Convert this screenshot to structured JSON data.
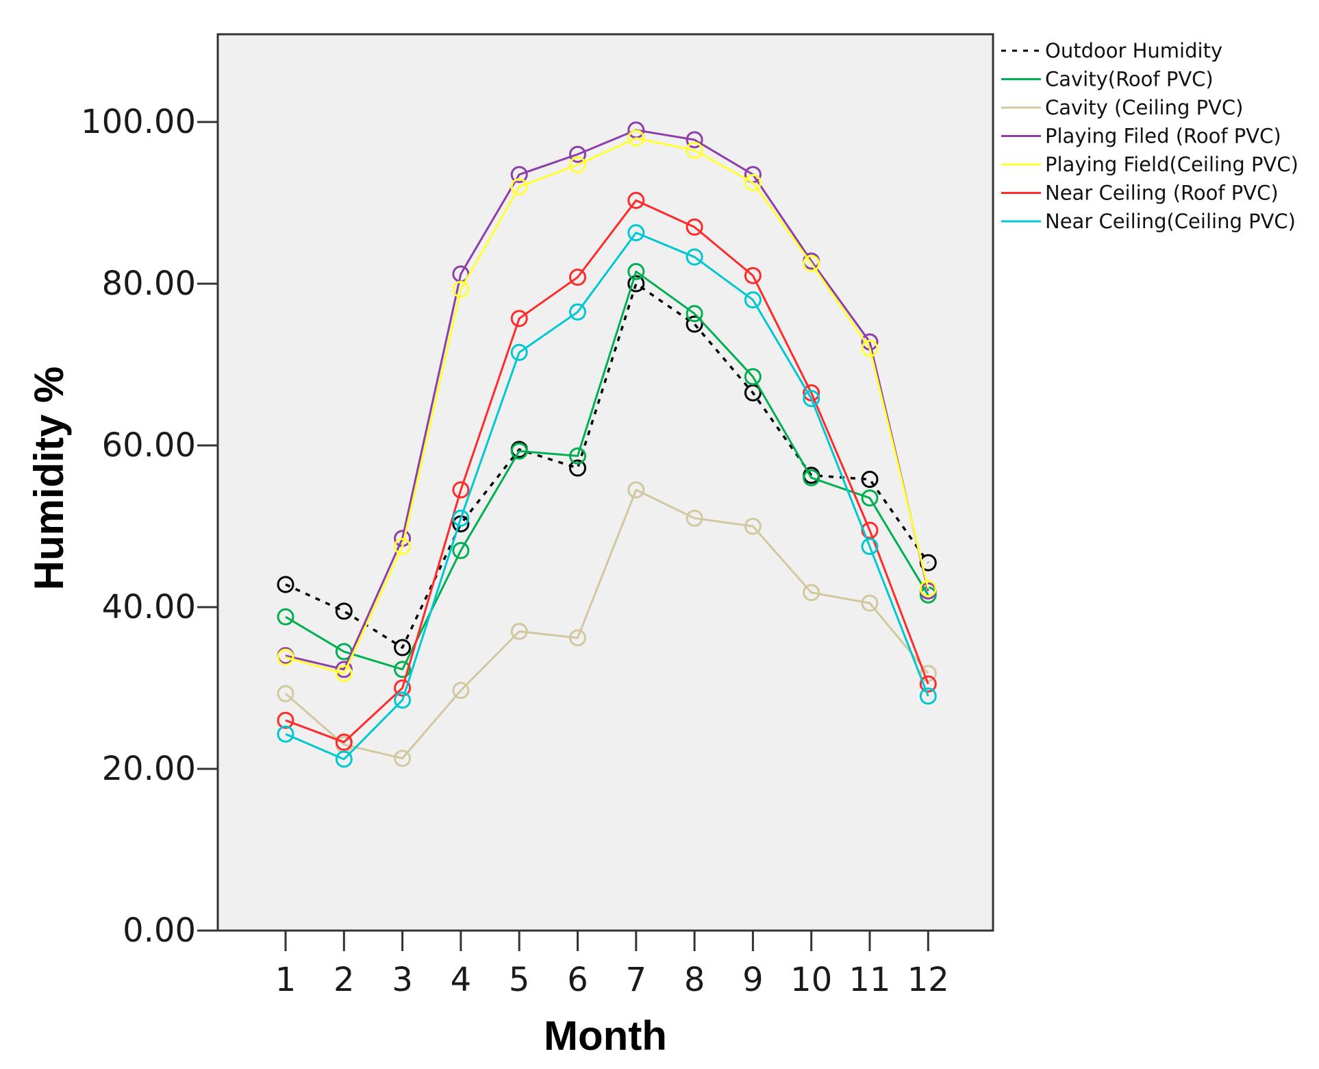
{
  "chart_data": {
    "type": "line",
    "xlabel": "Month",
    "ylabel": "Humidity %",
    "ylim": [
      0,
      110
    ],
    "yticks": [
      0,
      20,
      40,
      60,
      80,
      100
    ],
    "ytick_labels": [
      "0.00",
      "20.00",
      "40.00",
      "60.00",
      "80.00",
      "100.00"
    ],
    "x": [
      1,
      2,
      3,
      4,
      5,
      6,
      7,
      8,
      9,
      10,
      11,
      12
    ],
    "xtick_labels": [
      "1",
      "2",
      "3",
      "4",
      "5",
      "6",
      "7",
      "8",
      "9",
      "10",
      "11",
      "12"
    ],
    "legend_position": "top-right, outside plot",
    "plot_background": "#f0f0f0",
    "series": [
      {
        "name": "Outdoor Humidity",
        "color": "#000000",
        "dashed": true,
        "values": [
          42.8,
          39.5,
          35.0,
          50.3,
          59.5,
          57.2,
          80.0,
          75.0,
          66.5,
          56.3,
          55.8,
          45.5
        ]
      },
      {
        "name": "Cavity(Roof PVC)",
        "color": "#00b050",
        "dashed": false,
        "values": [
          38.8,
          34.5,
          32.3,
          47.0,
          59.3,
          58.7,
          81.5,
          76.3,
          68.5,
          56.0,
          53.5,
          41.5
        ]
      },
      {
        "name": "Cavity (Ceiling PVC)",
        "color": "#d2c8a0",
        "dashed": false,
        "values": [
          29.3,
          23.0,
          21.3,
          29.7,
          37.0,
          36.2,
          54.5,
          51.0,
          50.0,
          41.8,
          40.5,
          31.8
        ]
      },
      {
        "name": "Playing Filed (Roof PVC)",
        "color": "#8e3ea8",
        "dashed": false,
        "values": [
          34.0,
          32.3,
          48.5,
          81.2,
          93.5,
          96.0,
          99.0,
          97.8,
          93.5,
          82.8,
          72.8,
          42.0
        ]
      },
      {
        "name": "Playing Field(Ceiling PVC)",
        "color": "#ffff33",
        "dashed": false,
        "values": [
          33.8,
          31.8,
          47.5,
          79.3,
          92.0,
          94.7,
          98.0,
          96.5,
          92.5,
          82.5,
          72.0,
          42.3
        ]
      },
      {
        "name": "Near Ceiling (Roof PVC)",
        "color": "#ff2a2a",
        "dashed": false,
        "values": [
          26.0,
          23.3,
          30.0,
          54.5,
          75.7,
          80.8,
          90.3,
          87.0,
          81.0,
          66.5,
          49.5,
          30.5
        ]
      },
      {
        "name": "Near Ceiling(Ceiling PVC)",
        "color": "#00c8d2",
        "dashed": false,
        "values": [
          24.3,
          21.2,
          28.5,
          51.0,
          71.5,
          76.5,
          86.3,
          83.3,
          78.0,
          65.8,
          47.5,
          29.0
        ]
      }
    ]
  }
}
